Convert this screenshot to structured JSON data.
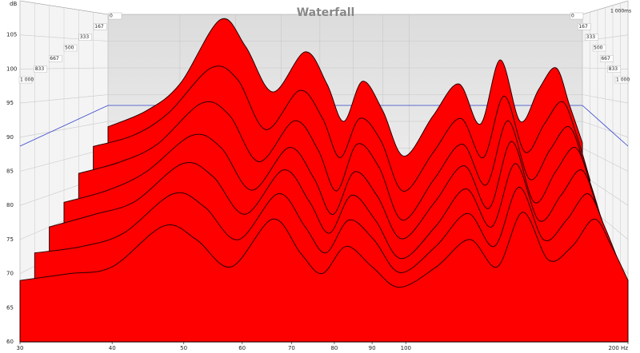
{
  "chart_data": {
    "type": "waterfall",
    "title": "Waterfall",
    "y_label": "dB",
    "time_unit_label": "1 000ms",
    "color": "#ff0000",
    "xscale": "log",
    "grid": true,
    "x": [
      30,
      35,
      40,
      47,
      52,
      58,
      66,
      72,
      77,
      83,
      90,
      98,
      110,
      122,
      133,
      144,
      156,
      168,
      180,
      190,
      200
    ],
    "xlim": [
      30,
      200
    ],
    "xticks": [
      30,
      40,
      50,
      60,
      70,
      80,
      90,
      100,
      {
        "value": 200,
        "label": "200 Hz"
      }
    ],
    "ylim": [
      60,
      110
    ],
    "yticks": [
      60,
      65,
      70,
      75,
      80,
      85,
      90,
      95,
      100,
      105
    ],
    "tlim": [
      0,
      1000
    ],
    "tticks": [
      0,
      167,
      333,
      500,
      667,
      833,
      {
        "value": 1000,
        "label": "1 000"
      }
    ],
    "slices": [
      {
        "t": 0,
        "values": [
          89,
          92,
          97,
          109,
          104,
          95.5,
          103,
          97,
          90,
          97.5,
          92,
          83.5,
          91,
          97,
          89.5,
          101.5,
          90,
          96,
          100,
          93,
          86
        ]
      },
      {
        "t": 167,
        "values": [
          86,
          88,
          92,
          100,
          98,
          89,
          96,
          91,
          84,
          91,
          87,
          78,
          85,
          91,
          84,
          95,
          85,
          90,
          94,
          88,
          80
        ]
      },
      {
        "t": 333,
        "values": [
          82,
          84,
          87,
          94,
          92,
          84,
          91,
          86,
          79,
          87,
          83,
          74,
          81,
          87,
          80,
          91,
          81,
          86,
          90,
          84,
          76
        ]
      },
      {
        "t": 500,
        "values": [
          78,
          80,
          83,
          89,
          87,
          80,
          87,
          82,
          76,
          83,
          79,
          72,
          78,
          84,
          77,
          88,
          78,
          83,
          87,
          81,
          73
        ]
      },
      {
        "t": 667,
        "values": [
          75,
          77,
          79,
          85,
          83,
          77,
          84,
          79,
          74,
          80,
          76,
          70,
          75,
          81,
          75,
          85,
          76,
          80,
          84,
          78,
          71
        ]
      },
      {
        "t": 833,
        "values": [
          72,
          73,
          75,
          81,
          79,
          74,
          81,
          76,
          72,
          77,
          74,
          69,
          73,
          78,
          73,
          82,
          74,
          77,
          81,
          76,
          70
        ]
      },
      {
        "t": 1000,
        "values": [
          69,
          70,
          71,
          77,
          75,
          71,
          78,
          73,
          70,
          74,
          71,
          68,
          71,
          75,
          71,
          79,
          72,
          74,
          78,
          74,
          69
        ]
      }
    ]
  }
}
